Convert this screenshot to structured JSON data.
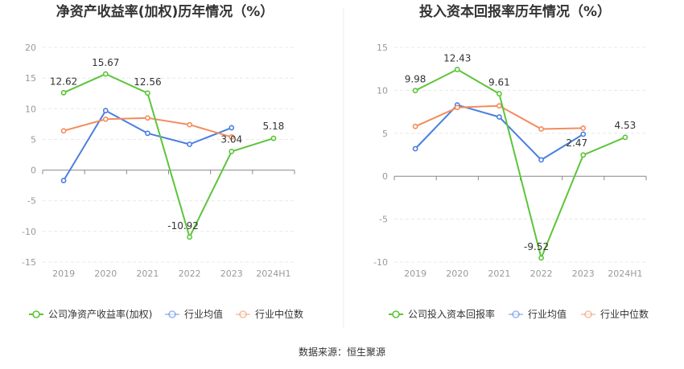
{
  "source": "数据来源：恒生聚源",
  "colors": {
    "company": "#5dc43a",
    "avg": "#4a7fe0",
    "median": "#f28c5e",
    "grid": "#e8e8e8",
    "axis": "#999999"
  },
  "chart_data": [
    {
      "type": "line",
      "title": "净资产收益率(加权)历年情况（%）",
      "categories": [
        "2019",
        "2020",
        "2021",
        "2022",
        "2023",
        "2024H1"
      ],
      "ylim": [
        -15,
        20
      ],
      "yticks": [
        20,
        15,
        10,
        5,
        0,
        -5,
        -10,
        -15
      ],
      "ytick_labels": [
        "20",
        "15",
        "10",
        "5",
        "0",
        "-5",
        "-10",
        "-15"
      ],
      "grid": true,
      "legend_position": "bottom",
      "series": [
        {
          "name": "公司净资产收益率(加权)",
          "color_key": "company",
          "values": [
            12.62,
            15.67,
            12.56,
            -10.92,
            3.04,
            5.18
          ],
          "labels": [
            "12.62",
            "15.67",
            "12.56",
            "-10.92",
            "3.04",
            "5.18"
          ]
        },
        {
          "name": "行业均值",
          "color_key": "avg",
          "values": [
            -1.7,
            9.7,
            6.0,
            4.2,
            6.9,
            null
          ]
        },
        {
          "name": "行业中位数",
          "color_key": "median",
          "values": [
            6.4,
            8.3,
            8.5,
            7.4,
            5.4,
            null
          ]
        }
      ]
    },
    {
      "type": "line",
      "title": "投入资本回报率历年情况（%）",
      "categories": [
        "2019",
        "2020",
        "2021",
        "2022",
        "2023",
        "2024H1"
      ],
      "ylim": [
        -10,
        15
      ],
      "yticks": [
        15,
        10,
        5,
        0,
        -5,
        -10
      ],
      "ytick_labels": [
        "15",
        "10",
        "5",
        "0",
        "-5",
        "-10"
      ],
      "grid": true,
      "legend_position": "bottom",
      "series": [
        {
          "name": "公司投入资本回报率",
          "color_key": "company",
          "values": [
            9.98,
            12.43,
            9.61,
            -9.52,
            2.47,
            4.53
          ],
          "labels": [
            "9.98",
            "12.43",
            "9.61",
            "-9.52",
            "2.47",
            "4.53"
          ]
        },
        {
          "name": "行业均值",
          "color_key": "avg",
          "values": [
            3.2,
            8.3,
            6.9,
            1.9,
            4.9,
            null
          ]
        },
        {
          "name": "行业中位数",
          "color_key": "median",
          "values": [
            5.8,
            8.0,
            8.2,
            5.5,
            5.6,
            null
          ]
        }
      ]
    }
  ]
}
